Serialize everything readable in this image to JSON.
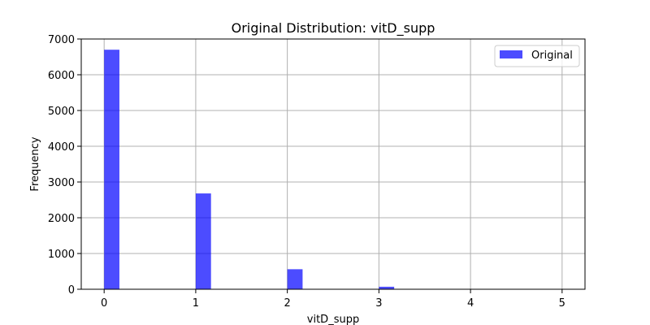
{
  "chart_data": {
    "type": "bar",
    "title": "Original Distribution: vitD_supp",
    "xlabel": "vitD_supp",
    "ylabel": "Frequency",
    "xlim": [
      -0.25,
      5.25
    ],
    "ylim": [
      0,
      7000
    ],
    "xticks": [
      0,
      1,
      2,
      3,
      4,
      5
    ],
    "yticks": [
      0,
      1000,
      2000,
      3000,
      4000,
      5000,
      6000,
      7000
    ],
    "grid": true,
    "legend": {
      "position": "top-right",
      "entries": [
        "Original"
      ]
    },
    "bar_width": 0.1667,
    "series": [
      {
        "name": "Original",
        "color": "#0000ff",
        "opacity": 0.7,
        "x": [
          0,
          1,
          2,
          3,
          4,
          5
        ],
        "values": [
          6700,
          2680,
          560,
          70,
          0,
          0
        ]
      }
    ]
  }
}
